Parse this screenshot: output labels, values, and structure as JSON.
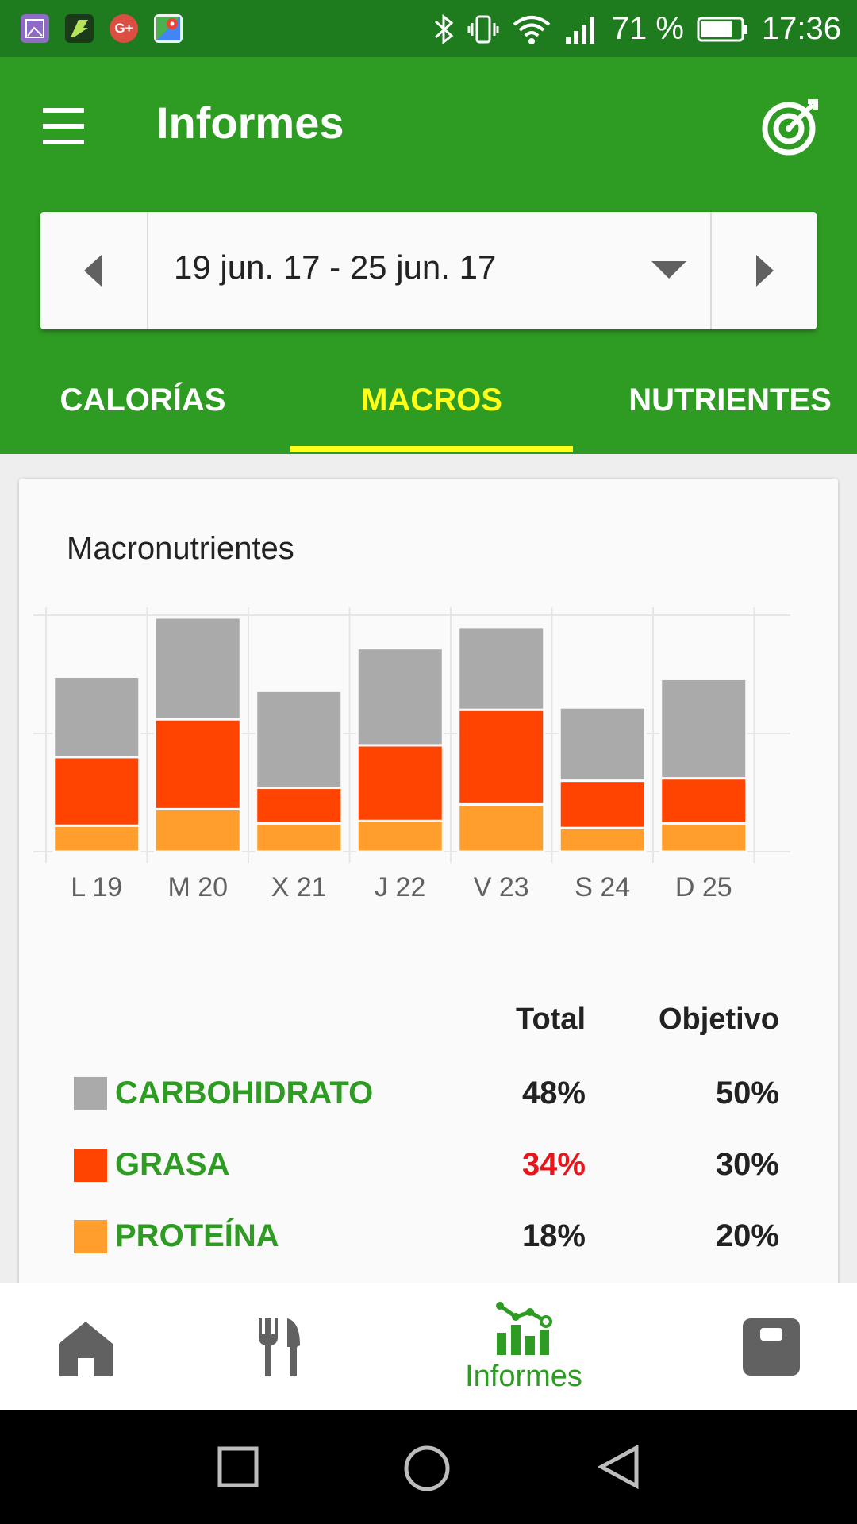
{
  "status_bar": {
    "battery_percent": "71 %",
    "time": "17:36",
    "notification_icons": [
      "gallery-icon",
      "maps-route-icon",
      "google-plus-icon",
      "google-maps-icon"
    ],
    "google_plus_text": "G+"
  },
  "app_bar": {
    "title": "Informes"
  },
  "date_range": {
    "label": "19 jun. 17 - 25 jun. 17"
  },
  "tabs": [
    {
      "label": "CALORÍAS",
      "active": false
    },
    {
      "label": "MACROS",
      "active": true
    },
    {
      "label": "NUTRIENTES",
      "active": false
    }
  ],
  "card": {
    "title": "Macronutrientes"
  },
  "chart_data": {
    "type": "bar",
    "stacked": true,
    "categories": [
      "L 19",
      "M 20",
      "X 21",
      "J 22",
      "V 23",
      "S 24",
      "D 25"
    ],
    "series": [
      {
        "name": "PROTEÍNA",
        "color": "#ff9e2c",
        "values": [
          11,
          18,
          12,
          13,
          20,
          10,
          12
        ]
      },
      {
        "name": "GRASA",
        "color": "#ff4300",
        "values": [
          29,
          38,
          15,
          32,
          40,
          20,
          19
        ]
      },
      {
        "name": "CARBOHIDRATO",
        "color": "#aaaaaa",
        "values": [
          34,
          43,
          41,
          41,
          35,
          31,
          42
        ]
      }
    ],
    "grid": true,
    "legend": "table-below"
  },
  "macros": {
    "header_total": "Total",
    "header_goal": "Objetivo",
    "rows": [
      {
        "name": "CARBOHIDRATO",
        "color": "#aaaaaa",
        "total": "48%",
        "goal": "50%",
        "total_color": "#222222"
      },
      {
        "name": "GRASA",
        "color": "#ff4300",
        "total": "34%",
        "goal": "30%",
        "total_color": "#e8151b"
      },
      {
        "name": "PROTEÍNA",
        "color": "#ff9e2c",
        "total": "18%",
        "goal": "20%",
        "total_color": "#222222"
      }
    ]
  },
  "bottom_nav": {
    "items": [
      {
        "icon": "home-icon",
        "label": ""
      },
      {
        "icon": "utensils-icon",
        "label": ""
      },
      {
        "icon": "reports-icon",
        "label": "Informes"
      },
      {
        "icon": "scale-icon",
        "label": ""
      }
    ]
  },
  "colors": {
    "primary": "#2e9b22",
    "status_bar": "#1e7b1e",
    "tab_active": "#ffff1a"
  }
}
